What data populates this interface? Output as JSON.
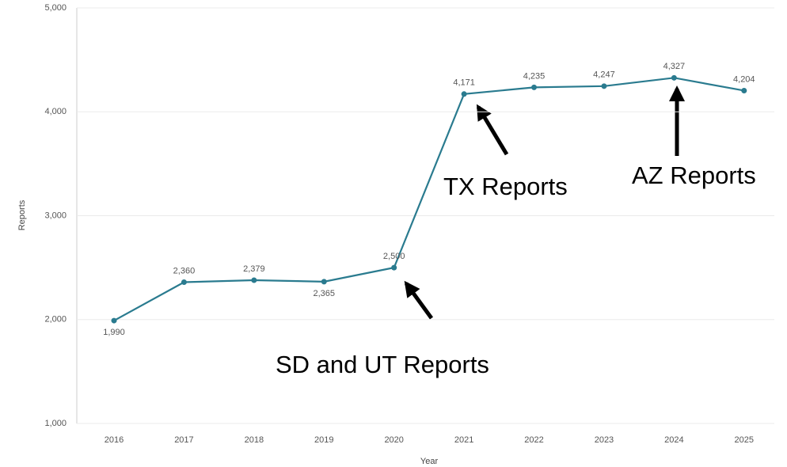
{
  "chart_data": {
    "type": "line",
    "x_label": "Year",
    "y_label": "Reports",
    "categories": [
      "2016",
      "2017",
      "2018",
      "2019",
      "2020",
      "2021",
      "2022",
      "2023",
      "2024",
      "2025"
    ],
    "series": [
      {
        "name": "Reports",
        "color": "#2a7b8f",
        "values": [
          1990,
          2360,
          2379,
          2365,
          2500,
          4171,
          4235,
          4247,
          4327,
          4204
        ],
        "value_labels": [
          "1,990",
          "2,360",
          "2,379",
          "2,365",
          "2,500",
          "4,171",
          "4,235",
          "4,247",
          "4,327",
          "4,204"
        ]
      }
    ],
    "ylim": [
      1000,
      5000
    ],
    "yticks": [
      {
        "value": 1000,
        "label": "1,000"
      },
      {
        "value": 2000,
        "label": "2,000"
      },
      {
        "value": 3000,
        "label": "3,000"
      },
      {
        "value": 4000,
        "label": "4,000"
      },
      {
        "value": 5000,
        "label": "5,000"
      }
    ],
    "grid": true,
    "annotations": [
      {
        "text": "TX Reports"
      },
      {
        "text": "AZ Reports"
      },
      {
        "text": "SD and UT Reports"
      }
    ]
  }
}
